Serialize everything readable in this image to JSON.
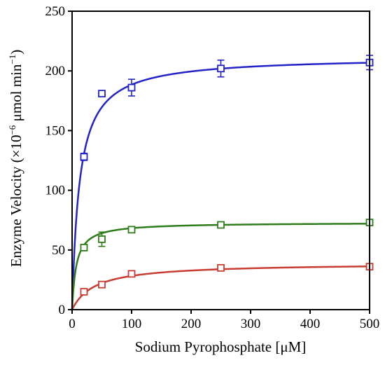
{
  "chart_data": {
    "type": "scatter",
    "title": "",
    "xlabel": "Sodium Pyrophosphate [μM]",
    "ylabel": {
      "prefix": "Enzyme Velocity (×10",
      "exp1": "−6",
      "middle": " μmol min",
      "exp2": "−1",
      "suffix": ")"
    },
    "xlim": [
      0,
      500
    ],
    "ylim": [
      0,
      250
    ],
    "xticks": [
      "0",
      "100",
      "200",
      "300",
      "400",
      "500"
    ],
    "yticks": [
      "0",
      "50",
      "100",
      "150",
      "200",
      "250"
    ],
    "grid": false,
    "legend": "none",
    "series": [
      {
        "color": "#2323c8",
        "x": [
          20,
          50,
          100,
          250,
          500
        ],
        "y": [
          128,
          181,
          186,
          202,
          207
        ],
        "err": [
          3,
          2,
          7,
          7,
          6
        ],
        "vmax": 212,
        "km": 12.5
      },
      {
        "color": "#2e7d1a",
        "x": [
          20,
          50,
          100,
          250,
          500
        ],
        "y": [
          52,
          59,
          67,
          71,
          73
        ],
        "err": [
          2,
          6,
          2,
          1,
          1
        ],
        "vmax": 73,
        "km": 7
      },
      {
        "color": "#c83c32",
        "x": [
          20,
          50,
          100,
          250,
          500
        ],
        "y": [
          15,
          21,
          30,
          35,
          36
        ],
        "err": [
          1,
          2,
          2,
          1,
          1
        ],
        "vmax": 39,
        "km": 38
      }
    ]
  }
}
